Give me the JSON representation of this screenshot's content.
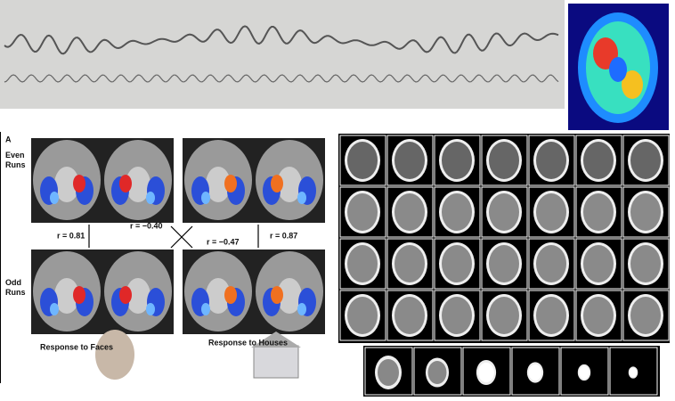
{
  "panel_label": "A",
  "row_labels": [
    "Even Runs",
    "Odd Runs"
  ],
  "correlations": [
    "r = 0.81",
    "r = −0.40",
    "r = −0.47",
    "r = 0.87"
  ],
  "captions": [
    "Response to Faces",
    "Response to Houses"
  ]
}
